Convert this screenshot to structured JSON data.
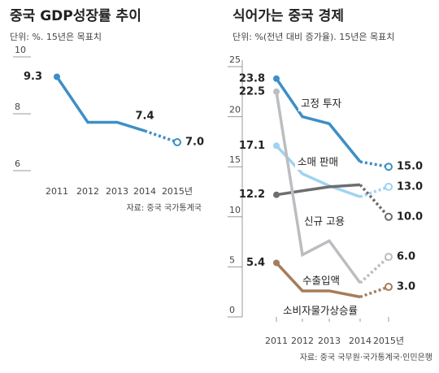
{
  "chart_data": [
    {
      "type": "line",
      "title": "중국 GDP성장률 추이",
      "subtitle": "단위: %.  15년은 목표치",
      "source": "자료: 중국 국가통계국",
      "categories": [
        "2011",
        "2012",
        "2013",
        "2014",
        "2015년"
      ],
      "ylim": [
        6,
        10
      ],
      "yticks": [
        6,
        8,
        10
      ],
      "series": [
        {
          "name": null,
          "color": "#3d8fc6",
          "values": [
            9.3,
            7.7,
            7.7,
            7.4,
            7.0
          ],
          "value_labels": [
            "9.3",
            null,
            null,
            "7.4",
            "7.0"
          ]
        }
      ]
    },
    {
      "type": "line",
      "title": "식어가는 중국 경제",
      "subtitle": "단위: %(전년 대비 증가율). 15년은 목표치",
      "source": "자료: 중국 국무원·국가통계국·인민은행",
      "categories": [
        "2011",
        "2012",
        "2013",
        "2014",
        "2015년"
      ],
      "ylim": [
        0,
        25
      ],
      "yticks": [
        0,
        5,
        10,
        15,
        20,
        25
      ],
      "series": [
        {
          "name": "고정 투자",
          "color": "#3d8fc6",
          "values": [
            23.8,
            20.0,
            19.3,
            15.5,
            15.0
          ],
          "value_labels": [
            "23.8",
            null,
            null,
            null,
            "15.0"
          ]
        },
        {
          "name": "소매 판매",
          "color": "#9fd3f0",
          "values": [
            17.1,
            14.3,
            13.1,
            12.0,
            13.0
          ],
          "value_labels": [
            "17.1",
            null,
            null,
            null,
            "13.0"
          ]
        },
        {
          "name": "신규 고용",
          "color": "#6d6e71",
          "values": [
            12.2,
            12.6,
            13.0,
            13.2,
            10.0
          ],
          "value_labels": [
            "12.2",
            null,
            null,
            null,
            "10.0"
          ]
        },
        {
          "name": "수출입액",
          "color": "#bcbdc0",
          "values": [
            22.5,
            6.2,
            7.6,
            3.4,
            6.0
          ],
          "value_labels": [
            "22.5",
            null,
            null,
            null,
            "6.0"
          ]
        },
        {
          "name": "소비자물가상승률",
          "color": "#a57c5b",
          "values": [
            5.4,
            2.6,
            2.6,
            2.0,
            3.0
          ],
          "value_labels": [
            "5.4",
            null,
            null,
            null,
            "3.0"
          ]
        }
      ]
    }
  ]
}
